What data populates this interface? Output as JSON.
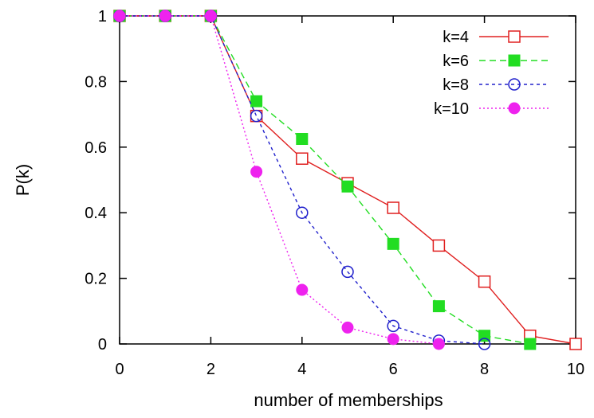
{
  "chart_data": {
    "type": "line",
    "title": "",
    "xlabel": "number of memberships",
    "ylabel": "P(k)",
    "xlim": [
      0,
      10
    ],
    "ylim": [
      0,
      1
    ],
    "x_ticks": [
      "0",
      "2",
      "4",
      "6",
      "8",
      "10"
    ],
    "y_ticks": [
      "0",
      "0.2",
      "0.4",
      "0.6",
      "0.8",
      "1"
    ],
    "grid": false,
    "legend_position": "top-right",
    "series": [
      {
        "name": "k=4",
        "color": "#e02020",
        "marker": "open-square",
        "line_style": "solid",
        "x": [
          0,
          1,
          2,
          3,
          4,
          5,
          6,
          7,
          8,
          9,
          10
        ],
        "values": [
          1.0,
          1.0,
          1.0,
          0.695,
          0.565,
          0.49,
          0.415,
          0.3,
          0.19,
          0.025,
          0.0
        ]
      },
      {
        "name": "k=6",
        "color": "#22dd22",
        "marker": "filled-square",
        "line_style": "dashed",
        "x": [
          0,
          1,
          2,
          3,
          4,
          5,
          6,
          7,
          8,
          9
        ],
        "values": [
          1.0,
          1.0,
          1.0,
          0.74,
          0.625,
          0.48,
          0.305,
          0.115,
          0.025,
          0.0
        ]
      },
      {
        "name": "k=8",
        "color": "#2020cc",
        "marker": "open-circle",
        "line_style": "short-dashed",
        "x": [
          0,
          1,
          2,
          3,
          4,
          5,
          6,
          7,
          8
        ],
        "values": [
          1.0,
          1.0,
          1.0,
          0.695,
          0.4,
          0.22,
          0.055,
          0.01,
          0.0
        ]
      },
      {
        "name": "k=10",
        "color": "#ee22ee",
        "marker": "filled-circle",
        "line_style": "dotted",
        "x": [
          0,
          1,
          2,
          3,
          4,
          5,
          6,
          7
        ],
        "values": [
          1.0,
          1.0,
          1.0,
          0.525,
          0.165,
          0.05,
          0.015,
          0.0
        ]
      }
    ]
  }
}
